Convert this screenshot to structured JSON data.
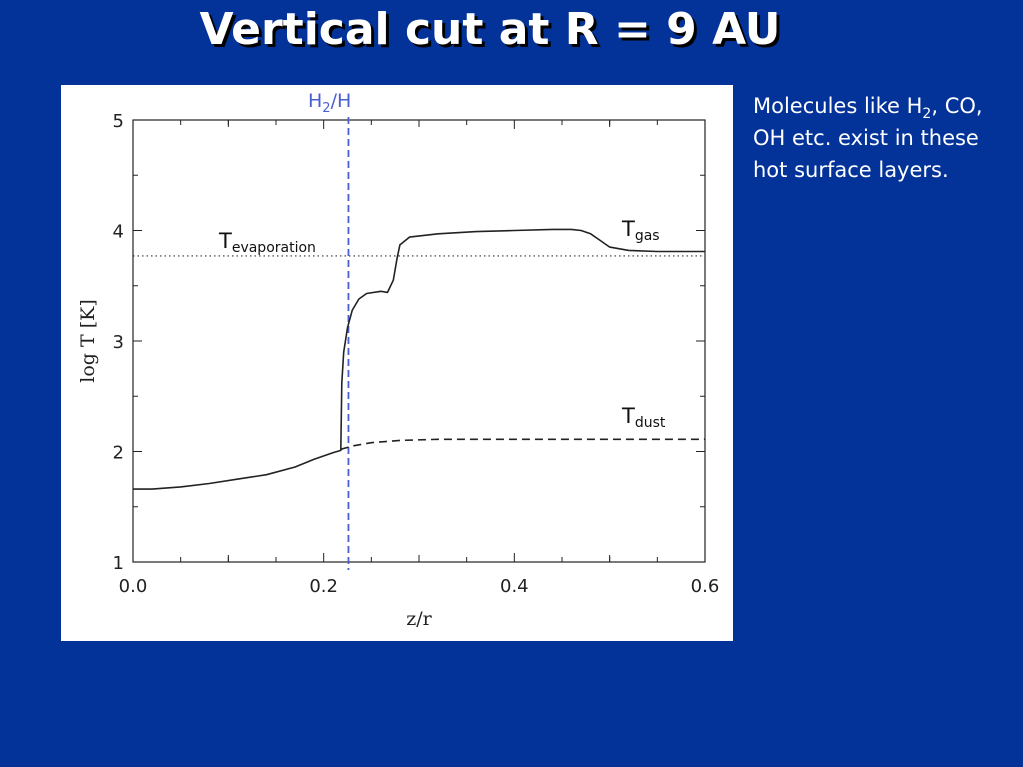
{
  "slide": {
    "title": "Vertical cut at R = 9 AU"
  },
  "note": {
    "line1_a": "Molecules like H",
    "line1_sub": "2",
    "line1_b": ",",
    "rest": "CO, OH etc. exist in these hot surface layers."
  },
  "colors": {
    "background": "#033399",
    "marker_line": "#4a5fd0",
    "curve": "#222222"
  },
  "chart_data": {
    "type": "line",
    "xlabel": "z/r",
    "ylabel": "log T [K]",
    "xlim": [
      0.0,
      0.6
    ],
    "ylim": [
      1,
      5
    ],
    "xticks": [
      "0.0",
      "0.2",
      "0.4",
      "0.6"
    ],
    "yticks": [
      "1",
      "2",
      "3",
      "4",
      "5"
    ],
    "series": [
      {
        "name": "T_gas",
        "label_main": "T",
        "label_sub": "gas",
        "style": "solid",
        "x": [
          0.0,
          0.02,
          0.05,
          0.08,
          0.11,
          0.14,
          0.17,
          0.19,
          0.21,
          0.218,
          0.219,
          0.221,
          0.225,
          0.23,
          0.237,
          0.245,
          0.26,
          0.267,
          0.273,
          0.277,
          0.28,
          0.29,
          0.32,
          0.36,
          0.4,
          0.44,
          0.46,
          0.47,
          0.48,
          0.49,
          0.5,
          0.52,
          0.55,
          0.6
        ],
        "y": [
          1.66,
          1.66,
          1.68,
          1.71,
          1.75,
          1.79,
          1.86,
          1.93,
          1.99,
          2.01,
          2.62,
          2.9,
          3.12,
          3.28,
          3.38,
          3.43,
          3.45,
          3.44,
          3.55,
          3.75,
          3.87,
          3.94,
          3.97,
          3.99,
          4.0,
          4.01,
          4.01,
          4.0,
          3.97,
          3.91,
          3.85,
          3.82,
          3.81,
          3.81
        ]
      },
      {
        "name": "T_dust",
        "label_main": "T",
        "label_sub": "dust",
        "style": "dashed",
        "x": [
          0.218,
          0.23,
          0.25,
          0.28,
          0.32,
          0.4,
          0.5,
          0.6
        ],
        "y": [
          2.02,
          2.05,
          2.08,
          2.1,
          2.11,
          2.11,
          2.11,
          2.11
        ]
      }
    ],
    "reference_lines": [
      {
        "orientation": "horizontal",
        "y": 3.77,
        "style": "dotted",
        "label_main": "T",
        "label_sub": "evaporation"
      },
      {
        "orientation": "vertical",
        "x": 0.226,
        "style": "dashed",
        "label_a": "H",
        "label_sub": "2",
        "label_b": "/H"
      }
    ]
  }
}
